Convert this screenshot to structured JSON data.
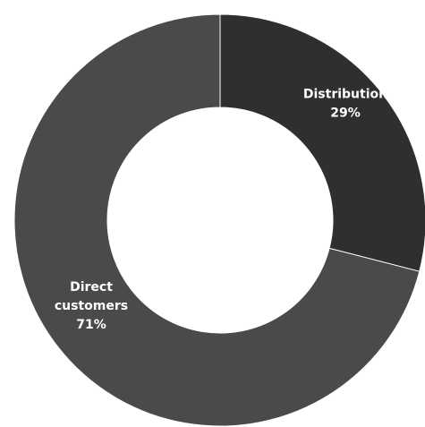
{
  "chart_data": {
    "type": "pie",
    "variant": "donut",
    "slices": [
      {
        "name": "Distribution",
        "value": 29,
        "label_lines": [
          "Distribution",
          "29%"
        ],
        "color": "#2f2f2f"
      },
      {
        "name": "Direct customers",
        "value": 71,
        "label_lines": [
          "Direct",
          "customers",
          "71%"
        ],
        "color": "#4a4a4a"
      }
    ],
    "start_angle_deg": 0,
    "direction": "clockwise",
    "unit": "%",
    "legend": "none",
    "background": "#ffffff"
  }
}
